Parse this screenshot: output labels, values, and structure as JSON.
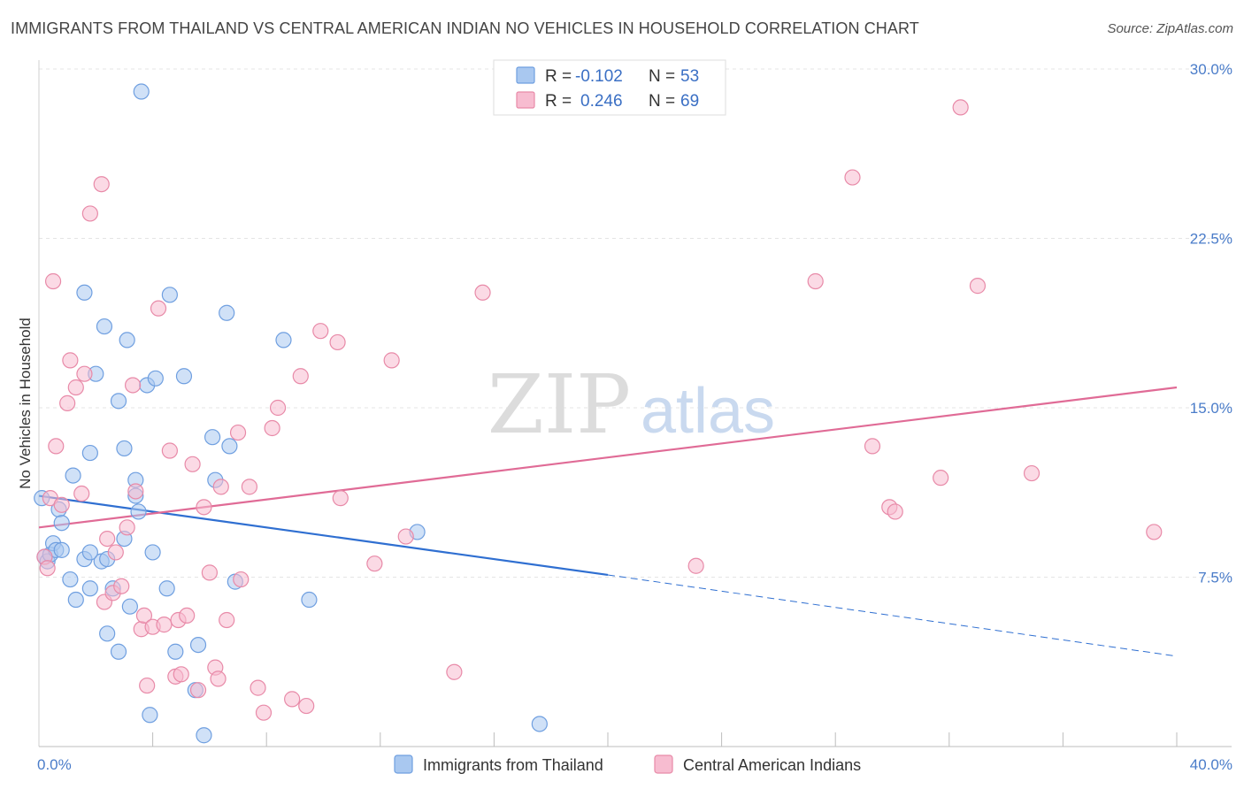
{
  "title": "IMMIGRANTS FROM THAILAND VS CENTRAL AMERICAN INDIAN NO VEHICLES IN HOUSEHOLD CORRELATION CHART",
  "source": "Source: ZipAtlas.com",
  "watermark": {
    "zip": "ZIP",
    "atlas": "atlas"
  },
  "legend_stats": [
    {
      "r_label": "R =",
      "r_value": "-0.102",
      "n_label": "N =",
      "n_value": "53",
      "color": "#a9c8f0",
      "stroke": "#6f9fe0"
    },
    {
      "r_label": "R =",
      "r_value": "0.246",
      "n_label": "N =",
      "n_value": "69",
      "color": "#f7bcd0",
      "stroke": "#e88aa8"
    }
  ],
  "chart_data": {
    "type": "scatter",
    "title": "IMMIGRANTS FROM THAILAND VS CENTRAL AMERICAN INDIAN NO VEHICLES IN HOUSEHOLD CORRELATION CHART",
    "xlabel": "",
    "ylabel": "No Vehicles in Household",
    "xlim": [
      0,
      40
    ],
    "ylim": [
      0,
      30
    ],
    "x_tick_labels": [
      "0.0%",
      "40.0%"
    ],
    "y_ticks": [
      7.5,
      15.0,
      22.5,
      30.0
    ],
    "y_tick_labels": [
      "7.5%",
      "15.0%",
      "22.5%",
      "30.0%"
    ],
    "grid": true,
    "legend_position": "bottom-center",
    "series": [
      {
        "name": "Immigrants from Thailand",
        "color": "#a9c8f0",
        "stroke": "#6f9fe0",
        "trend": {
          "x": [
            0,
            20
          ],
          "y": [
            11.1,
            7.6
          ],
          "dashed_to": [
            40,
            4.0
          ],
          "color": "#2f6fd1"
        },
        "points": [
          [
            0.1,
            11.0
          ],
          [
            0.2,
            8.4
          ],
          [
            0.3,
            8.2
          ],
          [
            0.4,
            8.5
          ],
          [
            0.5,
            9.0
          ],
          [
            0.6,
            8.7
          ],
          [
            0.8,
            8.7
          ],
          [
            0.7,
            10.5
          ],
          [
            0.8,
            9.9
          ],
          [
            1.2,
            12.0
          ],
          [
            1.1,
            7.4
          ],
          [
            1.3,
            6.5
          ],
          [
            1.6,
            8.3
          ],
          [
            1.6,
            20.1
          ],
          [
            1.8,
            7.0
          ],
          [
            1.8,
            13.0
          ],
          [
            2.0,
            16.5
          ],
          [
            2.2,
            8.2
          ],
          [
            2.3,
            18.6
          ],
          [
            2.4,
            8.3
          ],
          [
            2.4,
            5.0
          ],
          [
            2.6,
            7.0
          ],
          [
            2.8,
            4.2
          ],
          [
            2.8,
            15.3
          ],
          [
            3.0,
            9.2
          ],
          [
            3.1,
            18.0
          ],
          [
            3.2,
            6.2
          ],
          [
            3.4,
            11.8
          ],
          [
            3.4,
            11.1
          ],
          [
            3.5,
            10.4
          ],
          [
            3.6,
            29.0
          ],
          [
            3.8,
            16.0
          ],
          [
            3.9,
            1.4
          ],
          [
            4.0,
            8.6
          ],
          [
            4.1,
            16.3
          ],
          [
            4.5,
            7.0
          ],
          [
            4.6,
            20.0
          ],
          [
            4.8,
            4.2
          ],
          [
            5.1,
            16.4
          ],
          [
            5.5,
            2.5
          ],
          [
            5.6,
            4.5
          ],
          [
            5.8,
            0.5
          ],
          [
            6.1,
            13.7
          ],
          [
            6.2,
            11.8
          ],
          [
            6.6,
            19.2
          ],
          [
            6.7,
            13.3
          ],
          [
            6.9,
            7.3
          ],
          [
            8.6,
            18.0
          ],
          [
            3.0,
            13.2
          ],
          [
            1.8,
            8.6
          ],
          [
            9.5,
            6.5
          ],
          [
            13.3,
            9.5
          ],
          [
            17.6,
            1.0
          ]
        ]
      },
      {
        "name": "Central American Indians",
        "color": "#f7bcd0",
        "stroke": "#e88aa8",
        "trend": {
          "x": [
            0,
            40
          ],
          "y": [
            9.7,
            15.9
          ],
          "color": "#e06b96"
        },
        "points": [
          [
            0.2,
            8.4
          ],
          [
            0.3,
            7.9
          ],
          [
            0.4,
            11.0
          ],
          [
            0.5,
            20.6
          ],
          [
            0.6,
            13.3
          ],
          [
            0.8,
            10.7
          ],
          [
            1.0,
            15.2
          ],
          [
            1.1,
            17.1
          ],
          [
            1.3,
            15.9
          ],
          [
            1.5,
            11.2
          ],
          [
            1.6,
            16.5
          ],
          [
            1.8,
            23.6
          ],
          [
            2.2,
            24.9
          ],
          [
            2.3,
            6.4
          ],
          [
            2.4,
            9.2
          ],
          [
            2.6,
            6.8
          ],
          [
            2.7,
            8.6
          ],
          [
            2.9,
            7.1
          ],
          [
            3.1,
            9.7
          ],
          [
            3.3,
            16.0
          ],
          [
            3.4,
            11.3
          ],
          [
            3.6,
            5.2
          ],
          [
            3.7,
            5.8
          ],
          [
            3.8,
            2.7
          ],
          [
            4.0,
            5.3
          ],
          [
            4.2,
            19.4
          ],
          [
            4.4,
            5.4
          ],
          [
            4.6,
            13.1
          ],
          [
            4.8,
            3.1
          ],
          [
            4.9,
            5.6
          ],
          [
            5.0,
            3.2
          ],
          [
            5.2,
            5.8
          ],
          [
            5.4,
            12.5
          ],
          [
            5.6,
            2.5
          ],
          [
            5.8,
            10.6
          ],
          [
            6.0,
            7.7
          ],
          [
            6.2,
            3.5
          ],
          [
            6.3,
            3.0
          ],
          [
            6.4,
            11.5
          ],
          [
            6.6,
            5.6
          ],
          [
            7.0,
            13.9
          ],
          [
            7.1,
            7.4
          ],
          [
            7.4,
            11.5
          ],
          [
            7.7,
            2.6
          ],
          [
            7.9,
            1.5
          ],
          [
            8.2,
            14.1
          ],
          [
            8.4,
            15.0
          ],
          [
            8.9,
            2.1
          ],
          [
            9.2,
            16.4
          ],
          [
            9.4,
            1.8
          ],
          [
            9.9,
            18.4
          ],
          [
            10.5,
            17.9
          ],
          [
            10.6,
            11.0
          ],
          [
            11.8,
            8.1
          ],
          [
            12.4,
            17.1
          ],
          [
            12.9,
            9.3
          ],
          [
            14.6,
            3.3
          ],
          [
            15.6,
            20.1
          ],
          [
            23.1,
            8.0
          ],
          [
            27.3,
            20.6
          ],
          [
            28.6,
            25.2
          ],
          [
            29.3,
            13.3
          ],
          [
            29.9,
            10.6
          ],
          [
            30.1,
            10.4
          ],
          [
            31.7,
            11.9
          ],
          [
            33.0,
            20.4
          ],
          [
            32.4,
            28.3
          ],
          [
            34.9,
            12.1
          ],
          [
            39.2,
            9.5
          ]
        ]
      }
    ]
  }
}
